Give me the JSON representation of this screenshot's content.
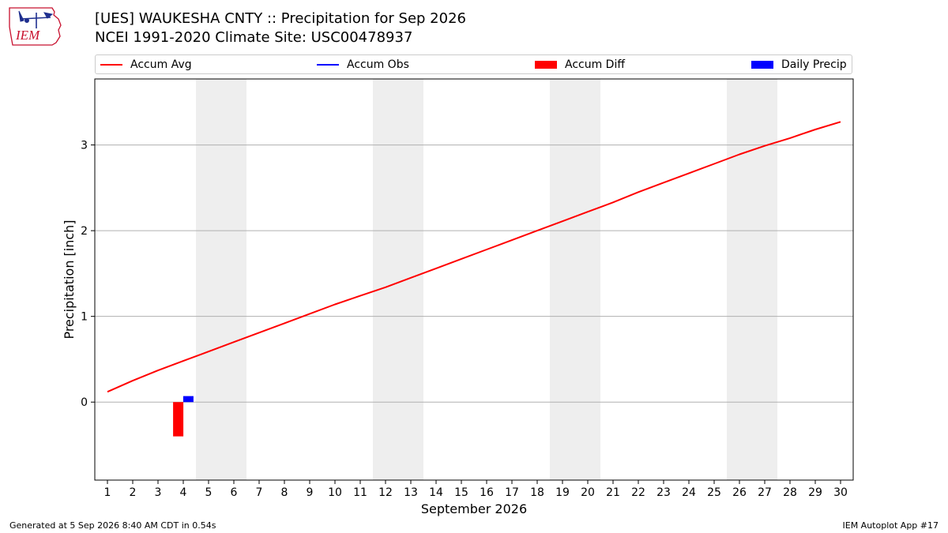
{
  "logo": {
    "text": "IEM",
    "colors": {
      "outline": "#c8102e",
      "text": "#c8102e",
      "icon": "#1f2f8f"
    }
  },
  "title": {
    "line1": "[UES] WAUKESHA CNTY :: Precipitation for Sep 2026",
    "line2": "NCEI 1991-2020 Climate Site: USC00478937"
  },
  "legend": {
    "placement": "top, above plot, single row",
    "items": [
      {
        "label": "Accum Avg",
        "kind": "line",
        "color": "#ff0000"
      },
      {
        "label": "Accum Obs",
        "kind": "line",
        "color": "#0000ff"
      },
      {
        "label": "Accum Diff",
        "kind": "box",
        "color": "#ff0000"
      },
      {
        "label": "Daily Precip",
        "kind": "box",
        "color": "#0000ff"
      }
    ]
  },
  "footer": {
    "left": "Generated at 5 Sep 2026 8:40 AM CDT in 0.54s",
    "right": "IEM Autoplot App #17"
  },
  "chart_data": {
    "type": "line",
    "xlabel": "September 2026",
    "ylabel": "Precipitation [inch]",
    "x_ticks": [
      1,
      2,
      3,
      4,
      5,
      6,
      7,
      8,
      9,
      10,
      11,
      12,
      13,
      14,
      15,
      16,
      17,
      18,
      19,
      20,
      21,
      22,
      23,
      24,
      25,
      26,
      27,
      28,
      29,
      30
    ],
    "xlim": [
      0.5,
      30.5
    ],
    "ylim": [
      -0.91,
      3.77
    ],
    "y_ticks": [
      0,
      1,
      2,
      3
    ],
    "grid": "horizontal",
    "weekend_shading": {
      "color": "#eeeeee",
      "ranges": [
        [
          5,
          6
        ],
        [
          12,
          13
        ],
        [
          19,
          20
        ],
        [
          26,
          27
        ]
      ]
    },
    "series": [
      {
        "name": "Accum Avg",
        "kind": "line",
        "color": "#ff0000",
        "x": [
          1,
          2,
          3,
          4,
          5,
          6,
          7,
          8,
          9,
          10,
          11,
          12,
          13,
          14,
          15,
          16,
          17,
          18,
          19,
          20,
          21,
          22,
          23,
          24,
          25,
          26,
          27,
          28,
          29,
          30
        ],
        "y": [
          0.12,
          0.25,
          0.37,
          0.48,
          0.59,
          0.7,
          0.81,
          0.92,
          1.03,
          1.14,
          1.24,
          1.34,
          1.45,
          1.56,
          1.67,
          1.78,
          1.89,
          2.0,
          2.11,
          2.22,
          2.33,
          2.45,
          2.56,
          2.67,
          2.78,
          2.89,
          2.99,
          3.08,
          3.18,
          3.27
        ]
      },
      {
        "name": "Accum Obs",
        "kind": "line",
        "color": "#0000ff",
        "x": [],
        "y": []
      },
      {
        "name": "Accum Diff",
        "kind": "bar",
        "color": "#ff0000",
        "x": [
          3.8
        ],
        "y": [
          -0.4
        ]
      },
      {
        "name": "Daily Precip",
        "kind": "bar",
        "color": "#0000ff",
        "x": [
          4.2
        ],
        "y": [
          0.07
        ]
      }
    ]
  }
}
